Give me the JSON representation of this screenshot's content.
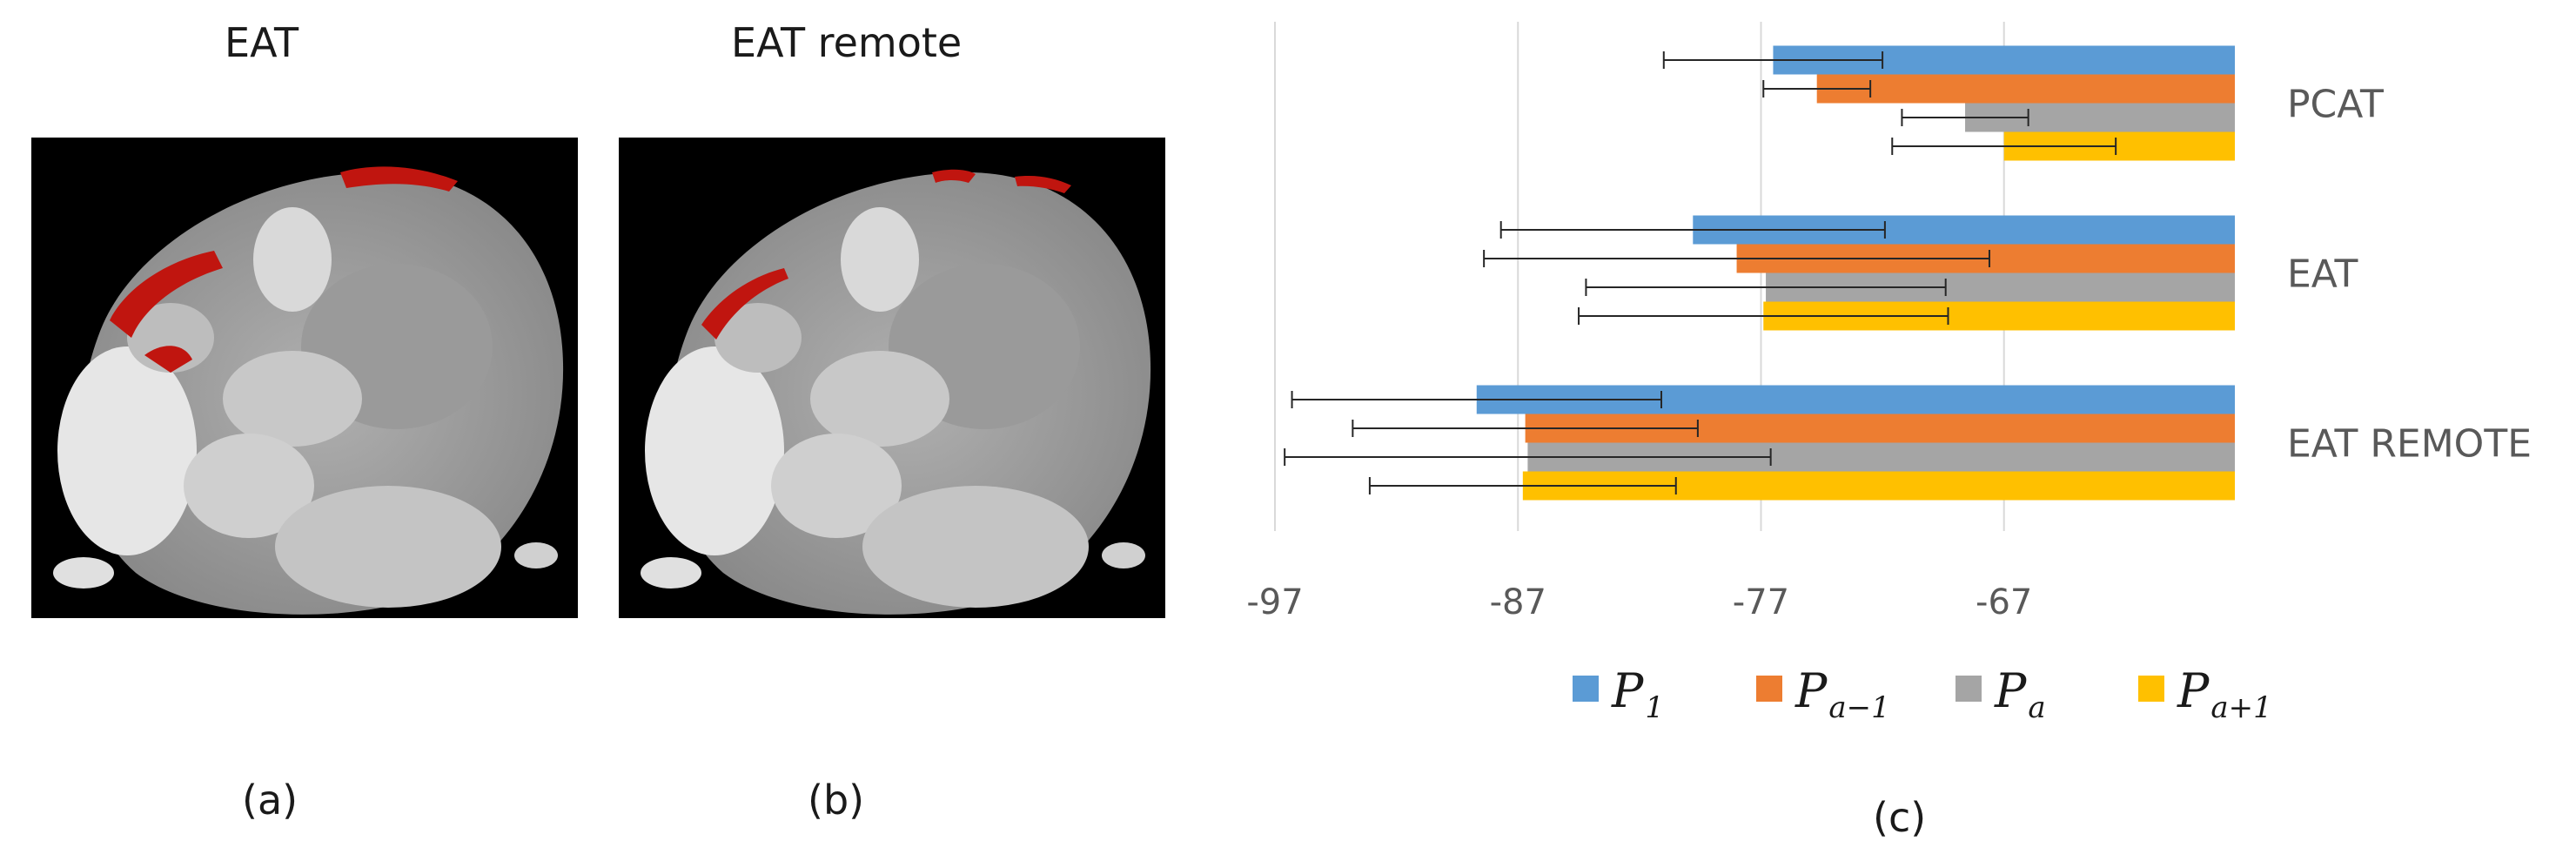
{
  "panels": {
    "a": {
      "title": "EAT",
      "caption": "(a)"
    },
    "b": {
      "title": "EAT remote",
      "caption": "(b)"
    },
    "c": {
      "caption": "(c)"
    }
  },
  "colors": {
    "segmentation": "#c0150f",
    "error_bar": "#262626",
    "grid": "#d9d9d9"
  },
  "chart_data": {
    "type": "bar",
    "orientation": "horizontal",
    "categories": [
      "PCAT",
      "EAT",
      "EAT REMOTE"
    ],
    "series": [
      {
        "name": "P_1",
        "legend_main": "P",
        "legend_sub": "1",
        "color": "#5b9bd5",
        "values": [
          -76.5,
          -79.8,
          -88.7
        ],
        "error": [
          4.5,
          7.9,
          7.6
        ]
      },
      {
        "name": "P_{a-1}",
        "legend_main": "P",
        "legend_sub": "a−1",
        "color": "#ed7d31",
        "values": [
          -74.7,
          -78.0,
          -86.7
        ],
        "error": [
          2.2,
          10.4,
          7.1
        ]
      },
      {
        "name": "P_a",
        "legend_main": "P",
        "legend_sub": "a",
        "color": "#a5a5a5",
        "values": [
          -68.6,
          -76.8,
          -86.6
        ],
        "error": [
          2.6,
          7.4,
          10.0
        ]
      },
      {
        "name": "P_{a+1}",
        "legend_main": "P",
        "legend_sub": "a+1",
        "color": "#ffc000",
        "values": [
          -67.0,
          -76.9,
          -86.8
        ],
        "error": [
          4.6,
          7.6,
          6.3
        ]
      }
    ],
    "x_ticks": [
      -97,
      -87,
      -77,
      -67
    ],
    "xlim": [
      -97.0,
      -57.5
    ],
    "bar_origin": -57.5,
    "grid": true,
    "legend_position": "bottom"
  }
}
